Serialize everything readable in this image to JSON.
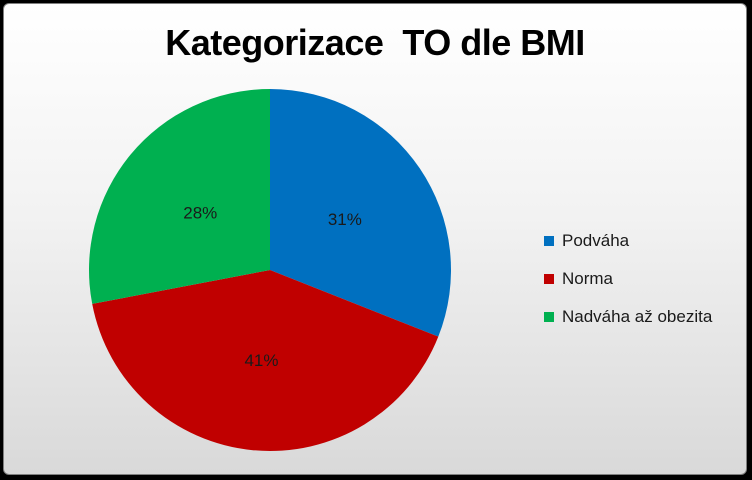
{
  "chart_data": {
    "type": "pie",
    "title": "Kategorizace  TO dle BMI",
    "categories": [
      "Podváha",
      "Norma",
      "Nadváha až obezita"
    ],
    "values": [
      31,
      41,
      28
    ],
    "labels": [
      "31%",
      "41%",
      "28%"
    ],
    "colors": [
      "#0070C0",
      "#C00000",
      "#00B050"
    ],
    "legend_position": "right"
  }
}
